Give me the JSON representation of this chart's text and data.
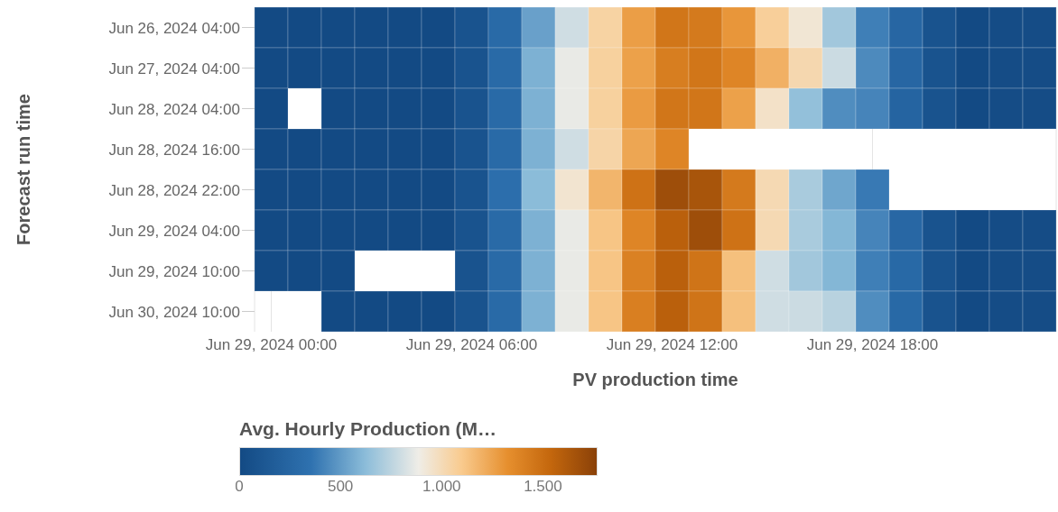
{
  "chart_data": {
    "type": "heatmap",
    "xlabel": "PV production time",
    "ylabel": "Forecast run time",
    "legend_title": "Avg. Hourly Production (M…",
    "grid": "x",
    "categories": [
      "Jun 29, 2024 00:00",
      null,
      null,
      null,
      null,
      null,
      "Jun 29, 2024 06:00",
      null,
      null,
      null,
      null,
      null,
      "Jun 29, 2024 12:00",
      null,
      null,
      null,
      null,
      null,
      "Jun 29, 2024 18:00",
      null,
      null,
      null,
      null,
      null
    ],
    "y_categories": [
      "Jun 26, 2024 04:00",
      "Jun 27, 2024 04:00",
      "Jun 28, 2024 04:00",
      "Jun 28, 2024 16:00",
      "Jun 28, 2024 22:00",
      "Jun 29, 2024 04:00",
      "Jun 29, 2024 10:00",
      "Jun 30, 2024 10:00"
    ],
    "cells": [
      [
        0,
        0,
        0,
        0,
        0,
        0,
        80,
        280,
        520,
        800,
        1050,
        1270,
        1460,
        1440,
        1300,
        1070,
        930,
        680,
        400,
        250,
        80,
        0,
        20,
        20
      ],
      [
        0,
        0,
        0,
        0,
        0,
        0,
        80,
        280,
        580,
        870,
        1060,
        1260,
        1420,
        1460,
        1380,
        1200,
        1020,
        790,
        440,
        250,
        80,
        0,
        20,
        20
      ],
      [
        0,
        null,
        0,
        0,
        0,
        0,
        80,
        280,
        580,
        870,
        1060,
        1280,
        1460,
        1460,
        1260,
        960,
        640,
        450,
        420,
        230,
        80,
        0,
        20,
        20
      ],
      [
        0,
        0,
        0,
        0,
        0,
        0,
        80,
        280,
        580,
        800,
        1040,
        1240,
        1380,
        null,
        null,
        null,
        null,
        null,
        null,
        null,
        null,
        null,
        null,
        null
      ],
      [
        0,
        0,
        0,
        0,
        0,
        0,
        80,
        320,
        620,
        940,
        1180,
        1480,
        1690,
        1650,
        1440,
        1010,
        700,
        540,
        380,
        null,
        null,
        null,
        null,
        null
      ],
      [
        0,
        0,
        0,
        0,
        0,
        0,
        80,
        280,
        580,
        870,
        1120,
        1380,
        1580,
        1690,
        1480,
        1010,
        700,
        600,
        420,
        260,
        80,
        0,
        20,
        20
      ],
      [
        0,
        0,
        0,
        null,
        null,
        null,
        80,
        280,
        580,
        870,
        1120,
        1400,
        1580,
        1470,
        1140,
        800,
        680,
        600,
        400,
        270,
        80,
        0,
        20,
        20
      ],
      [
        null,
        null,
        0,
        0,
        0,
        0,
        80,
        280,
        580,
        870,
        1120,
        1410,
        1580,
        1470,
        1140,
        800,
        790,
        740,
        450,
        270,
        80,
        0,
        20,
        20
      ]
    ],
    "clim": [
      0,
      1770
    ],
    "cticks": [
      0,
      500,
      {
        "value": 1000,
        "label": "1.000"
      },
      {
        "value": 1500,
        "label": "1.500"
      }
    ]
  }
}
